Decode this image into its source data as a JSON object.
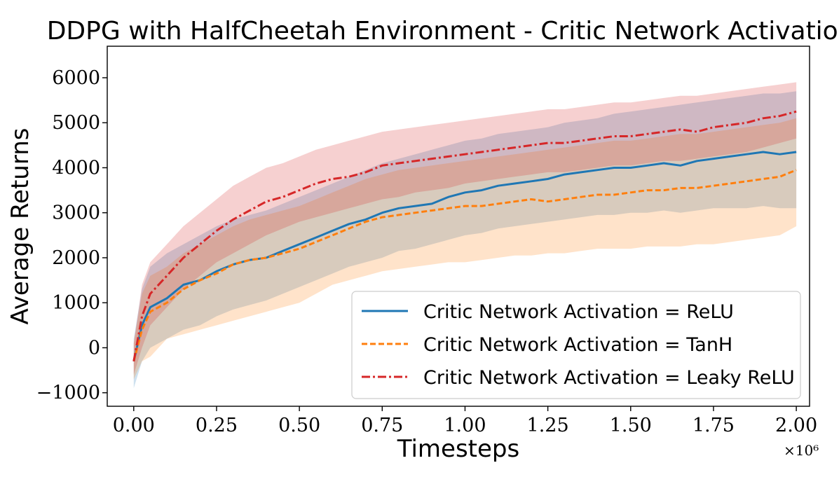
{
  "chart_data": {
    "type": "line",
    "title": "DDPG with HalfCheetah Environment - Critic Network Activations",
    "xlabel": "Timesteps",
    "ylabel": "Average Returns",
    "x_scale_label": "×10⁶",
    "xlim": [
      -0.08,
      2.04
    ],
    "ylim": [
      -1300,
      6700
    ],
    "x_ticks": [
      0.0,
      0.25,
      0.5,
      0.75,
      1.0,
      1.25,
      1.5,
      1.75,
      2.0
    ],
    "x_tick_labels": [
      "0.00",
      "0.25",
      "0.50",
      "0.75",
      "1.00",
      "1.25",
      "1.50",
      "1.75",
      "2.00"
    ],
    "y_ticks": [
      -1000,
      0,
      1000,
      2000,
      3000,
      4000,
      5000,
      6000
    ],
    "y_tick_labels": [
      "−1000",
      "0",
      "1000",
      "2000",
      "3000",
      "4000",
      "5000",
      "6000"
    ],
    "grid": false,
    "legend_position": "bottom-right",
    "x": [
      0.0,
      0.025,
      0.05,
      0.1,
      0.15,
      0.2,
      0.25,
      0.3,
      0.35,
      0.4,
      0.45,
      0.5,
      0.55,
      0.6,
      0.65,
      0.7,
      0.75,
      0.8,
      0.85,
      0.9,
      0.95,
      1.0,
      1.05,
      1.1,
      1.15,
      1.2,
      1.25,
      1.3,
      1.35,
      1.4,
      1.45,
      1.5,
      1.55,
      1.6,
      1.65,
      1.7,
      1.75,
      1.8,
      1.85,
      1.9,
      1.95,
      2.0
    ],
    "series": [
      {
        "name": "Critic Network Activation = ReLU",
        "color": "#1f77b4",
        "dash": "solid",
        "values": [
          -300,
          500,
          900,
          1100,
          1400,
          1500,
          1700,
          1850,
          1950,
          2000,
          2150,
          2300,
          2450,
          2600,
          2750,
          2850,
          3000,
          3100,
          3150,
          3200,
          3350,
          3450,
          3500,
          3600,
          3650,
          3700,
          3750,
          3850,
          3900,
          3950,
          4000,
          4000,
          4050,
          4100,
          4050,
          4150,
          4200,
          4250,
          4300,
          4350,
          4300,
          4350
        ],
        "lower": [
          -900,
          -300,
          0,
          200,
          400,
          500,
          700,
          850,
          950,
          1050,
          1200,
          1350,
          1500,
          1650,
          1800,
          1900,
          2000,
          2150,
          2200,
          2300,
          2400,
          2500,
          2550,
          2650,
          2700,
          2750,
          2800,
          2850,
          2900,
          2950,
          2950,
          3000,
          3000,
          3050,
          3000,
          3050,
          3100,
          3100,
          3100,
          3150,
          3100,
          3100
        ],
        "upper": [
          200,
          1300,
          1800,
          2100,
          2300,
          2500,
          2700,
          2850,
          2950,
          3050,
          3200,
          3350,
          3500,
          3650,
          3800,
          3950,
          4100,
          4200,
          4300,
          4400,
          4500,
          4600,
          4650,
          4750,
          4800,
          4850,
          4900,
          5000,
          5050,
          5100,
          5200,
          5250,
          5300,
          5350,
          5400,
          5450,
          5500,
          5550,
          5600,
          5650,
          5650,
          5700
        ]
      },
      {
        "name": "Critic Network Activation = TanH",
        "color": "#ff7f0e",
        "dash": "dashed",
        "values": [
          -300,
          400,
          800,
          1000,
          1300,
          1500,
          1650,
          1850,
          1950,
          2000,
          2100,
          2200,
          2350,
          2500,
          2650,
          2800,
          2900,
          2950,
          3000,
          3050,
          3100,
          3150,
          3150,
          3200,
          3250,
          3300,
          3250,
          3300,
          3350,
          3400,
          3400,
          3450,
          3500,
          3500,
          3550,
          3550,
          3600,
          3650,
          3700,
          3750,
          3800,
          3950
        ],
        "lower": [
          -700,
          -300,
          -200,
          200,
          300,
          400,
          500,
          600,
          700,
          800,
          900,
          1000,
          1200,
          1400,
          1500,
          1600,
          1700,
          1750,
          1800,
          1850,
          1900,
          1900,
          1950,
          2000,
          2050,
          2050,
          2100,
          2100,
          2150,
          2200,
          2200,
          2200,
          2250,
          2250,
          2250,
          2300,
          2300,
          2350,
          2400,
          2450,
          2500,
          2700
        ],
        "upper": [
          100,
          1200,
          1600,
          1800,
          2100,
          2300,
          2500,
          2700,
          2850,
          2950,
          3050,
          3150,
          3300,
          3450,
          3600,
          3750,
          3850,
          3950,
          4000,
          4050,
          4100,
          4150,
          4200,
          4250,
          4300,
          4350,
          4400,
          4450,
          4500,
          4550,
          4600,
          4600,
          4650,
          4700,
          4750,
          4750,
          4800,
          4850,
          4900,
          4950,
          5000,
          5100
        ]
      },
      {
        "name": "Critic Network Activation = Leaky ReLU",
        "color": "#d62728",
        "dash": "dashdot",
        "values": [
          -300,
          700,
          1200,
          1600,
          2000,
          2300,
          2600,
          2850,
          3050,
          3250,
          3350,
          3500,
          3650,
          3750,
          3800,
          3900,
          4050,
          4100,
          4150,
          4200,
          4250,
          4300,
          4350,
          4400,
          4450,
          4500,
          4550,
          4550,
          4600,
          4650,
          4700,
          4700,
          4750,
          4800,
          4850,
          4800,
          4900,
          4950,
          5000,
          5100,
          5150,
          5250
        ],
        "lower": [
          -600,
          0,
          500,
          900,
          1300,
          1600,
          1900,
          2100,
          2300,
          2500,
          2650,
          2800,
          2900,
          3000,
          3100,
          3200,
          3300,
          3350,
          3450,
          3500,
          3550,
          3650,
          3700,
          3750,
          3800,
          3850,
          3900,
          3900,
          3950,
          4000,
          4050,
          4050,
          4100,
          4150,
          4150,
          4200,
          4250,
          4300,
          4350,
          4450,
          4550,
          4650
        ],
        "upper": [
          100,
          1400,
          1900,
          2300,
          2700,
          3000,
          3300,
          3600,
          3800,
          4000,
          4100,
          4250,
          4400,
          4500,
          4600,
          4700,
          4800,
          4850,
          4900,
          4950,
          5000,
          5050,
          5100,
          5150,
          5200,
          5250,
          5300,
          5300,
          5350,
          5400,
          5450,
          5450,
          5500,
          5550,
          5600,
          5600,
          5650,
          5700,
          5750,
          5800,
          5850,
          5900
        ]
      }
    ]
  }
}
